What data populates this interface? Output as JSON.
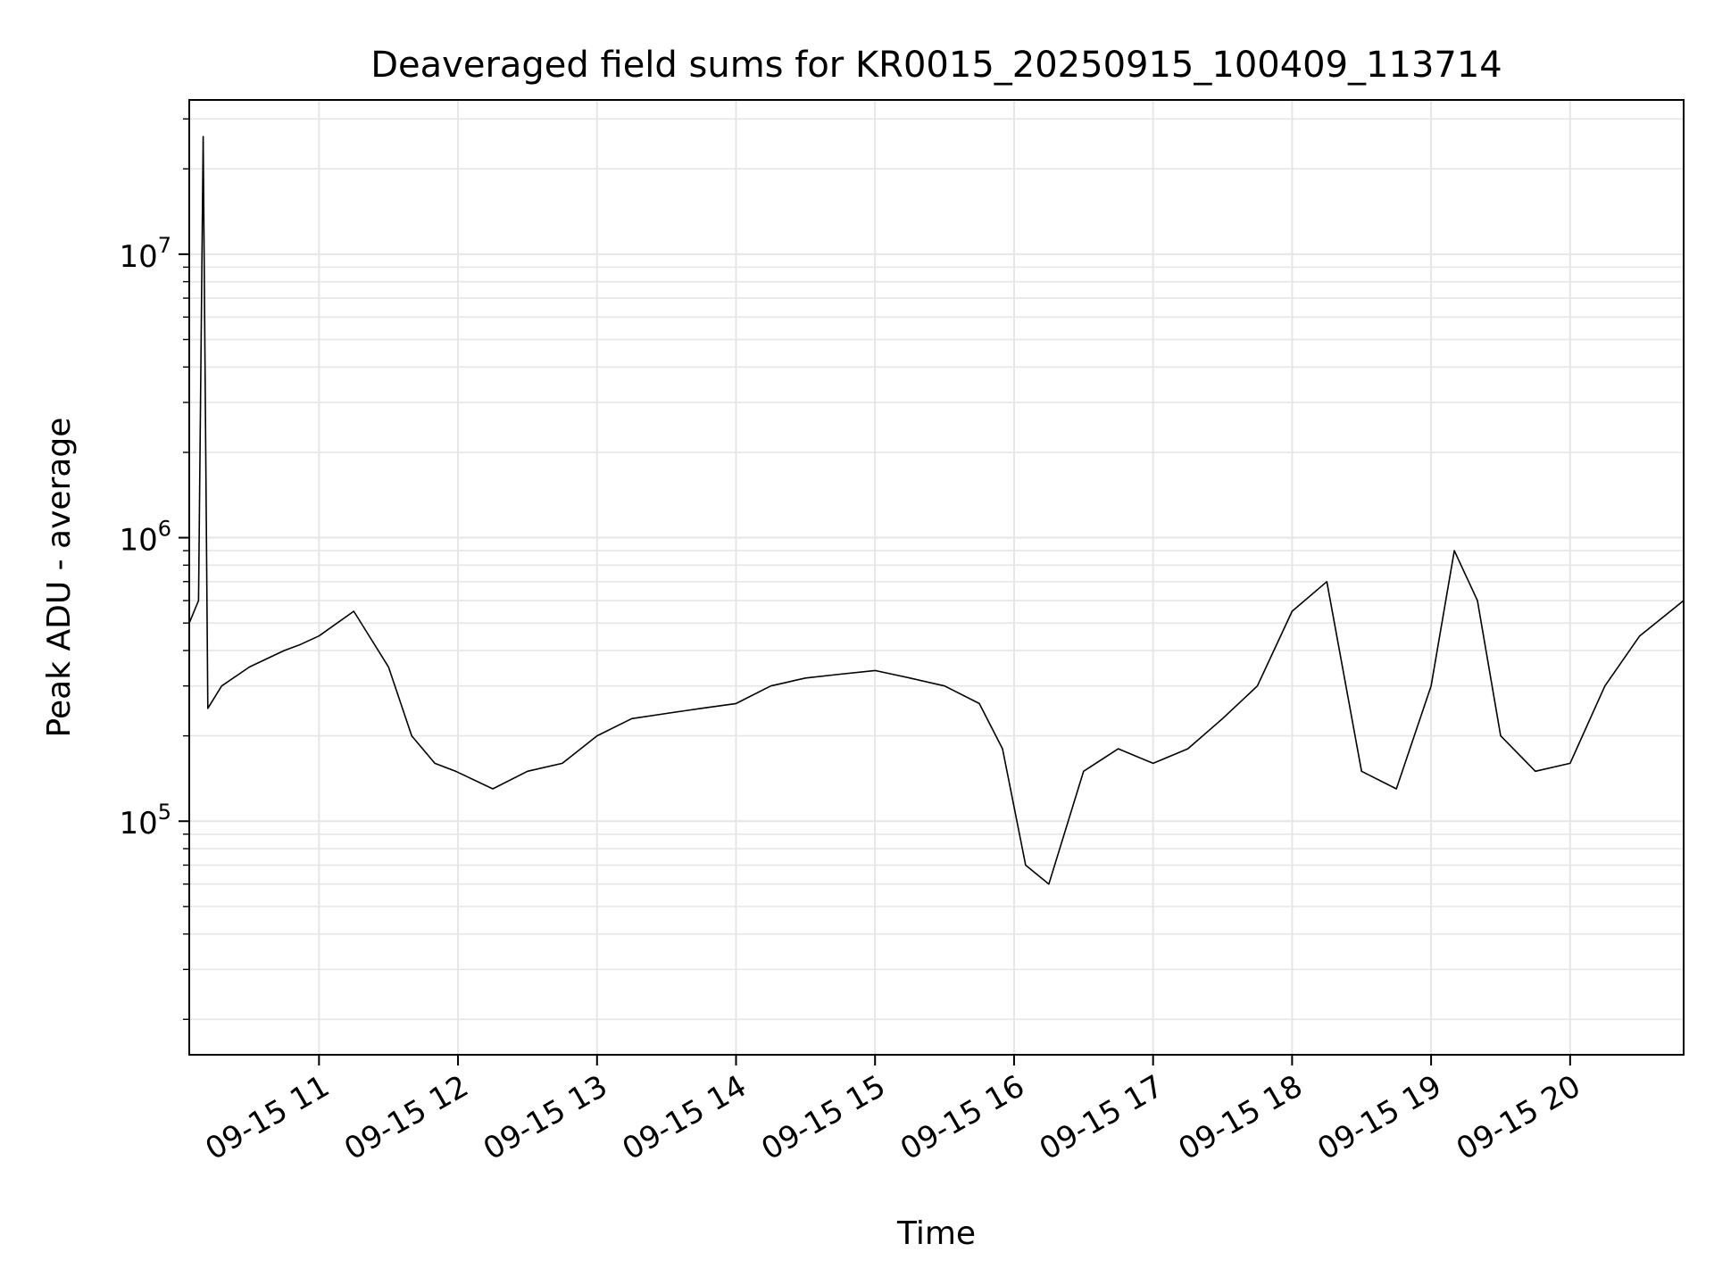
{
  "chart_data": {
    "type": "line",
    "title": "Deaveraged field sums for KR0015_20250915_100409_113714",
    "xlabel": "Time",
    "ylabel": "Peak ADU - average",
    "x_scale": "time",
    "y_scale": "log",
    "xlim": [
      "2025-09-15T10:04",
      "2025-09-15T20:49"
    ],
    "ylim": [
      15000,
      35000000
    ],
    "grid": {
      "x": true,
      "y_major": true,
      "y_minor": true
    },
    "x_ticks": [
      "2025-09-15T11:00",
      "2025-09-15T12:00",
      "2025-09-15T13:00",
      "2025-09-15T14:00",
      "2025-09-15T15:00",
      "2025-09-15T16:00",
      "2025-09-15T17:00",
      "2025-09-15T18:00",
      "2025-09-15T19:00",
      "2025-09-15T20:00"
    ],
    "x_tick_labels": [
      "09-15 11",
      "09-15 12",
      "09-15 13",
      "09-15 14",
      "09-15 15",
      "09-15 16",
      "09-15 17",
      "09-15 18",
      "09-15 19",
      "09-15 20"
    ],
    "y_ticks": [
      100000,
      1000000,
      10000000
    ],
    "y_tick_labels": [
      {
        "base": "10",
        "exp": "5"
      },
      {
        "base": "10",
        "exp": "6"
      },
      {
        "base": "10",
        "exp": "7"
      }
    ],
    "series_color": "#000000",
    "grid_color": "#e6e6e6",
    "series": [
      {
        "x": [
          "2025-09-15T10:04",
          "2025-09-15T10:08",
          "2025-09-15T10:10",
          "2025-09-15T10:12",
          "2025-09-15T10:18",
          "2025-09-15T10:30",
          "2025-09-15T10:45",
          "2025-09-15T10:52",
          "2025-09-15T11:00",
          "2025-09-15T11:15",
          "2025-09-15T11:30",
          "2025-09-15T11:40",
          "2025-09-15T11:50",
          "2025-09-15T11:59",
          "2025-09-15T12:15",
          "2025-09-15T12:30",
          "2025-09-15T12:45",
          "2025-09-15T13:00",
          "2025-09-15T13:15",
          "2025-09-15T13:30",
          "2025-09-15T13:45",
          "2025-09-15T14:00",
          "2025-09-15T14:15",
          "2025-09-15T14:30",
          "2025-09-15T14:45",
          "2025-09-15T15:00",
          "2025-09-15T15:15",
          "2025-09-15T15:30",
          "2025-09-15T15:45",
          "2025-09-15T15:55",
          "2025-09-15T16:05",
          "2025-09-15T16:15",
          "2025-09-15T16:30",
          "2025-09-15T16:45",
          "2025-09-15T17:00",
          "2025-09-15T17:15",
          "2025-09-15T17:30",
          "2025-09-15T17:45",
          "2025-09-15T18:00",
          "2025-09-15T18:15",
          "2025-09-15T18:30",
          "2025-09-15T18:45",
          "2025-09-15T19:00",
          "2025-09-15T19:10",
          "2025-09-15T19:20",
          "2025-09-15T19:30",
          "2025-09-15T19:45",
          "2025-09-15T20:00",
          "2025-09-15T20:15",
          "2025-09-15T20:30",
          "2025-09-15T20:49"
        ],
        "y": [
          500000,
          600000,
          26000000,
          250000,
          300000,
          350000,
          400000,
          420000,
          450000,
          550000,
          350000,
          200000,
          160000,
          150000,
          130000,
          150000,
          160000,
          200000,
          230000,
          240000,
          250000,
          260000,
          300000,
          320000,
          330000,
          340000,
          320000,
          300000,
          260000,
          180000,
          70000,
          60000,
          150000,
          180000,
          160000,
          180000,
          230000,
          300000,
          550000,
          700000,
          150000,
          130000,
          300000,
          900000,
          600000,
          200000,
          150000,
          160000,
          300000,
          450000,
          600000
        ]
      }
    ]
  }
}
